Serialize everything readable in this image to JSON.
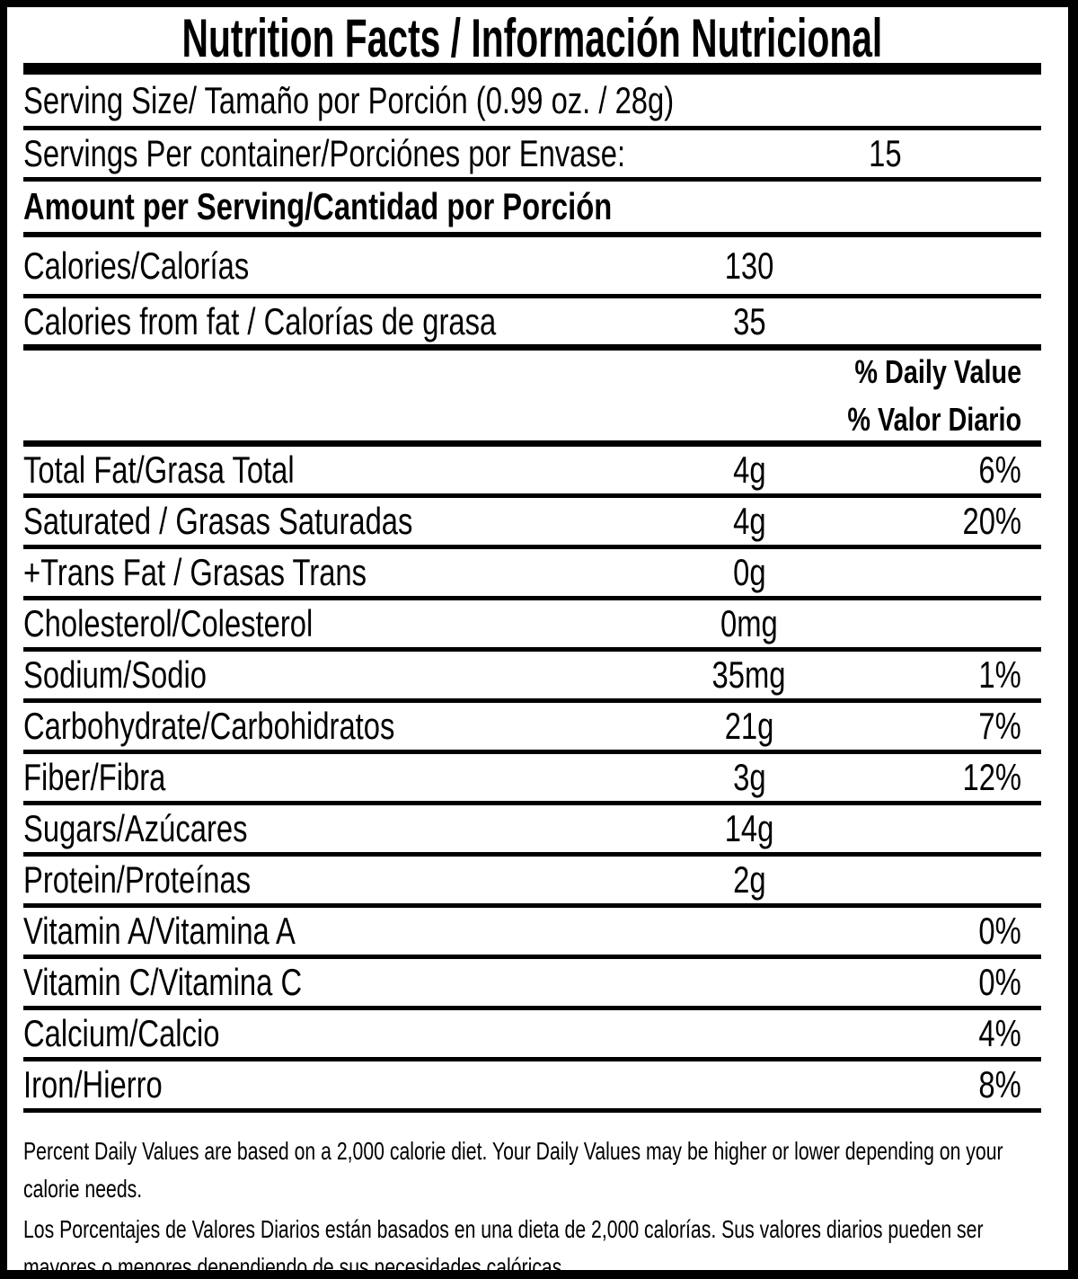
{
  "label": {
    "title": "Nutrition Facts / Información Nutricional",
    "serving_size": "Serving Size/ Tamaño por Porción  (0.99 oz. / 28g)",
    "servings_per_container": {
      "label": "Servings Per container/Porciónes por Envase:",
      "value": "15"
    },
    "amount_per_serving": "Amount per Serving/Cantidad por Porción",
    "calories": {
      "label": "Calories/Calorías",
      "value": "130"
    },
    "calories_from_fat": {
      "label": "Calories from fat / Calorías de grasa",
      "value": "35"
    },
    "daily_value_header": {
      "en": "% Daily Value",
      "es": "% Valor Diario"
    },
    "colors": {
      "ink": "#000000",
      "background": "#ffffff"
    }
  },
  "nutrients": [
    {
      "label": "Total Fat/Grasa Total",
      "amount": "4g",
      "dv": "6%"
    },
    {
      "label": "Saturated / Grasas Saturadas",
      "amount": "4g",
      "dv": "20%"
    },
    {
      "label": "+Trans Fat / Grasas Trans",
      "amount": "0g",
      "dv": ""
    },
    {
      "label": "Cholesterol/Colesterol",
      "amount": "0mg",
      "dv": ""
    },
    {
      "label": "Sodium/Sodio",
      "amount": "35mg",
      "dv": "1%"
    },
    {
      "label": "Carbohydrate/Carbohidratos",
      "amount": "21g",
      "dv": "7%"
    },
    {
      "label": "Fiber/Fibra",
      "amount": "3g",
      "dv": "12%"
    },
    {
      "label": "Sugars/Azúcares",
      "amount": "14g",
      "dv": ""
    },
    {
      "label": "Protein/Proteínas",
      "amount": "2g",
      "dv": ""
    },
    {
      "label": "Vitamin A/Vitamina A",
      "amount": "",
      "dv": "0%"
    },
    {
      "label": "Vitamin C/Vitamina C",
      "amount": "",
      "dv": "0%"
    },
    {
      "label": "Calcium/Calcio",
      "amount": "",
      "dv": "4%"
    },
    {
      "label": "Iron/Hierro",
      "amount": "",
      "dv": "8%"
    }
  ],
  "footnotes": {
    "en": "Percent Daily Values are based on a 2,000 calorie diet. Your Daily Values may be higher or lower depending on your calorie needs.",
    "es": "Los Porcentajes de Valores Diarios están basados en una dieta de 2,000 calorías. Sus valores diarios pueden ser mayores o menores dependiendo de sus necesidades calóricas"
  }
}
